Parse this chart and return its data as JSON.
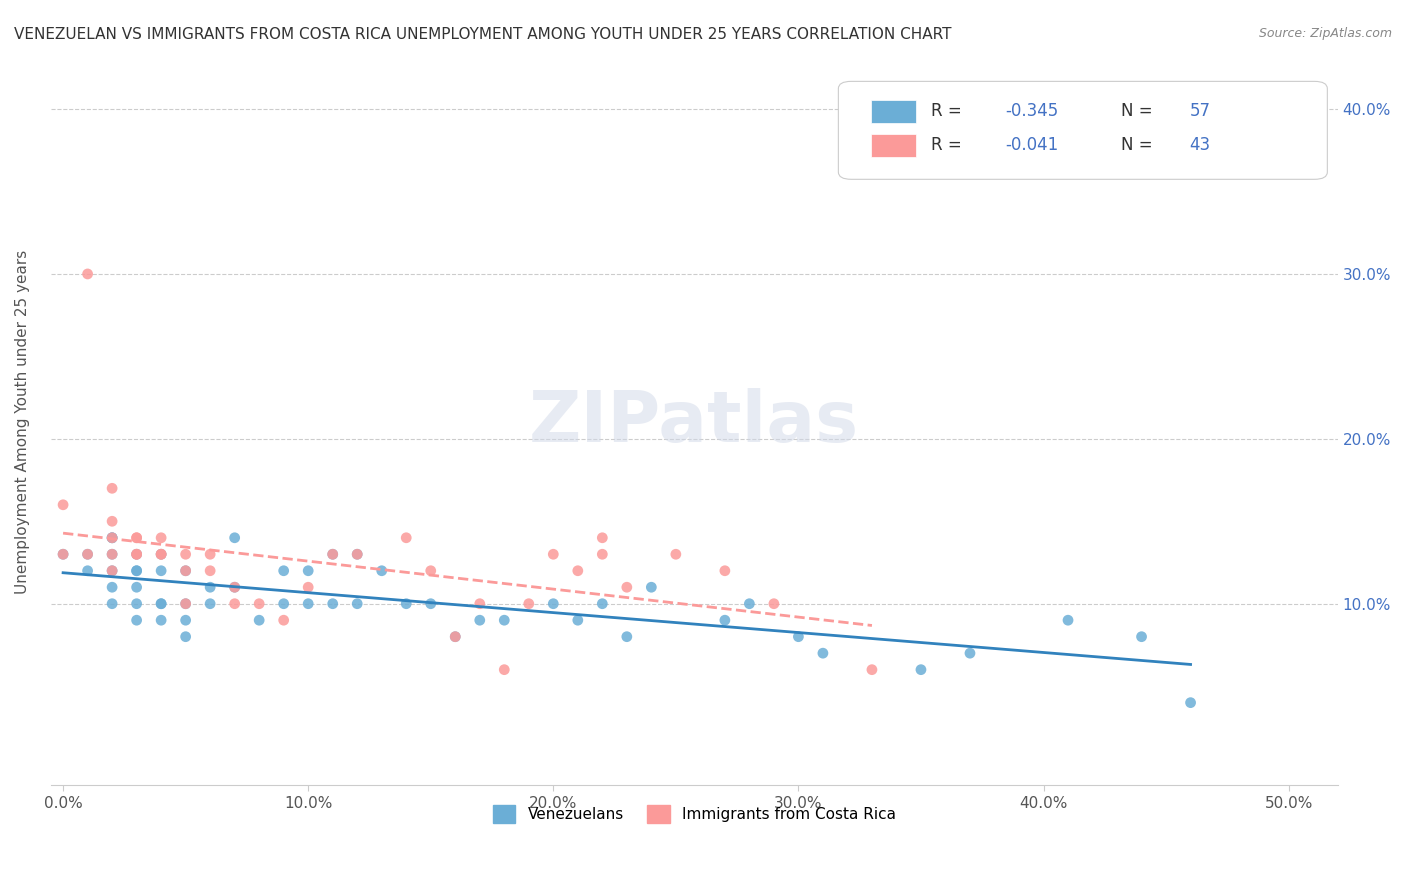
{
  "title": "VENEZUELAN VS IMMIGRANTS FROM COSTA RICA UNEMPLOYMENT AMONG YOUTH UNDER 25 YEARS CORRELATION CHART",
  "source": "Source: ZipAtlas.com",
  "ylabel": "Unemployment Among Youth under 25 years",
  "xlabel_ticks": [
    "0.0%",
    "10.0%",
    "20.0%",
    "30.0%",
    "40.0%",
    "50.0%"
  ],
  "xlabel_vals": [
    0.0,
    0.1,
    0.2,
    0.3,
    0.4,
    0.5
  ],
  "ylabel_ticks": [
    "10.0%",
    "20.0%",
    "30.0%",
    "40.0%"
  ],
  "ylabel_vals": [
    0.1,
    0.2,
    0.3,
    0.4
  ],
  "xlim": [
    -0.005,
    0.52
  ],
  "ylim": [
    -0.01,
    0.43
  ],
  "legend_label1": "Venezuelans",
  "legend_label2": "Immigrants from Costa Rica",
  "r1": -0.345,
  "n1": 57,
  "r2": -0.041,
  "n2": 43,
  "color1": "#6baed6",
  "color2": "#fb9a99",
  "color1_dark": "#3182bd",
  "color2_dark": "#e31a1c",
  "trendline1_color": "#3182bd",
  "trendline2_color": "#e31a1c",
  "watermark": "ZIPatlas",
  "venezuelan_x": [
    0.0,
    0.01,
    0.01,
    0.02,
    0.02,
    0.02,
    0.02,
    0.02,
    0.02,
    0.03,
    0.03,
    0.03,
    0.03,
    0.03,
    0.03,
    0.04,
    0.04,
    0.04,
    0.04,
    0.04,
    0.05,
    0.05,
    0.05,
    0.05,
    0.06,
    0.06,
    0.07,
    0.07,
    0.08,
    0.09,
    0.09,
    0.1,
    0.1,
    0.11,
    0.11,
    0.12,
    0.12,
    0.13,
    0.14,
    0.15,
    0.16,
    0.17,
    0.18,
    0.2,
    0.21,
    0.22,
    0.23,
    0.24,
    0.27,
    0.28,
    0.3,
    0.31,
    0.35,
    0.37,
    0.41,
    0.44,
    0.46
  ],
  "venezuelan_y": [
    0.13,
    0.12,
    0.13,
    0.1,
    0.11,
    0.12,
    0.13,
    0.14,
    0.14,
    0.09,
    0.1,
    0.11,
    0.12,
    0.12,
    0.13,
    0.09,
    0.1,
    0.1,
    0.12,
    0.13,
    0.08,
    0.09,
    0.1,
    0.12,
    0.1,
    0.11,
    0.11,
    0.14,
    0.09,
    0.1,
    0.12,
    0.1,
    0.12,
    0.1,
    0.13,
    0.1,
    0.13,
    0.12,
    0.1,
    0.1,
    0.08,
    0.09,
    0.09,
    0.1,
    0.09,
    0.1,
    0.08,
    0.11,
    0.09,
    0.1,
    0.08,
    0.07,
    0.06,
    0.07,
    0.09,
    0.08,
    0.04
  ],
  "costarica_x": [
    0.0,
    0.0,
    0.01,
    0.01,
    0.02,
    0.02,
    0.02,
    0.02,
    0.02,
    0.03,
    0.03,
    0.03,
    0.03,
    0.04,
    0.04,
    0.04,
    0.05,
    0.05,
    0.05,
    0.06,
    0.06,
    0.07,
    0.07,
    0.08,
    0.09,
    0.1,
    0.11,
    0.12,
    0.14,
    0.15,
    0.16,
    0.17,
    0.18,
    0.19,
    0.2,
    0.21,
    0.22,
    0.22,
    0.23,
    0.25,
    0.27,
    0.29,
    0.33
  ],
  "costarica_y": [
    0.13,
    0.16,
    0.3,
    0.13,
    0.12,
    0.13,
    0.14,
    0.15,
    0.17,
    0.13,
    0.13,
    0.14,
    0.14,
    0.13,
    0.13,
    0.14,
    0.1,
    0.12,
    0.13,
    0.12,
    0.13,
    0.1,
    0.11,
    0.1,
    0.09,
    0.11,
    0.13,
    0.13,
    0.14,
    0.12,
    0.08,
    0.1,
    0.06,
    0.1,
    0.13,
    0.12,
    0.13,
    0.14,
    0.11,
    0.13,
    0.12,
    0.1,
    0.06
  ]
}
